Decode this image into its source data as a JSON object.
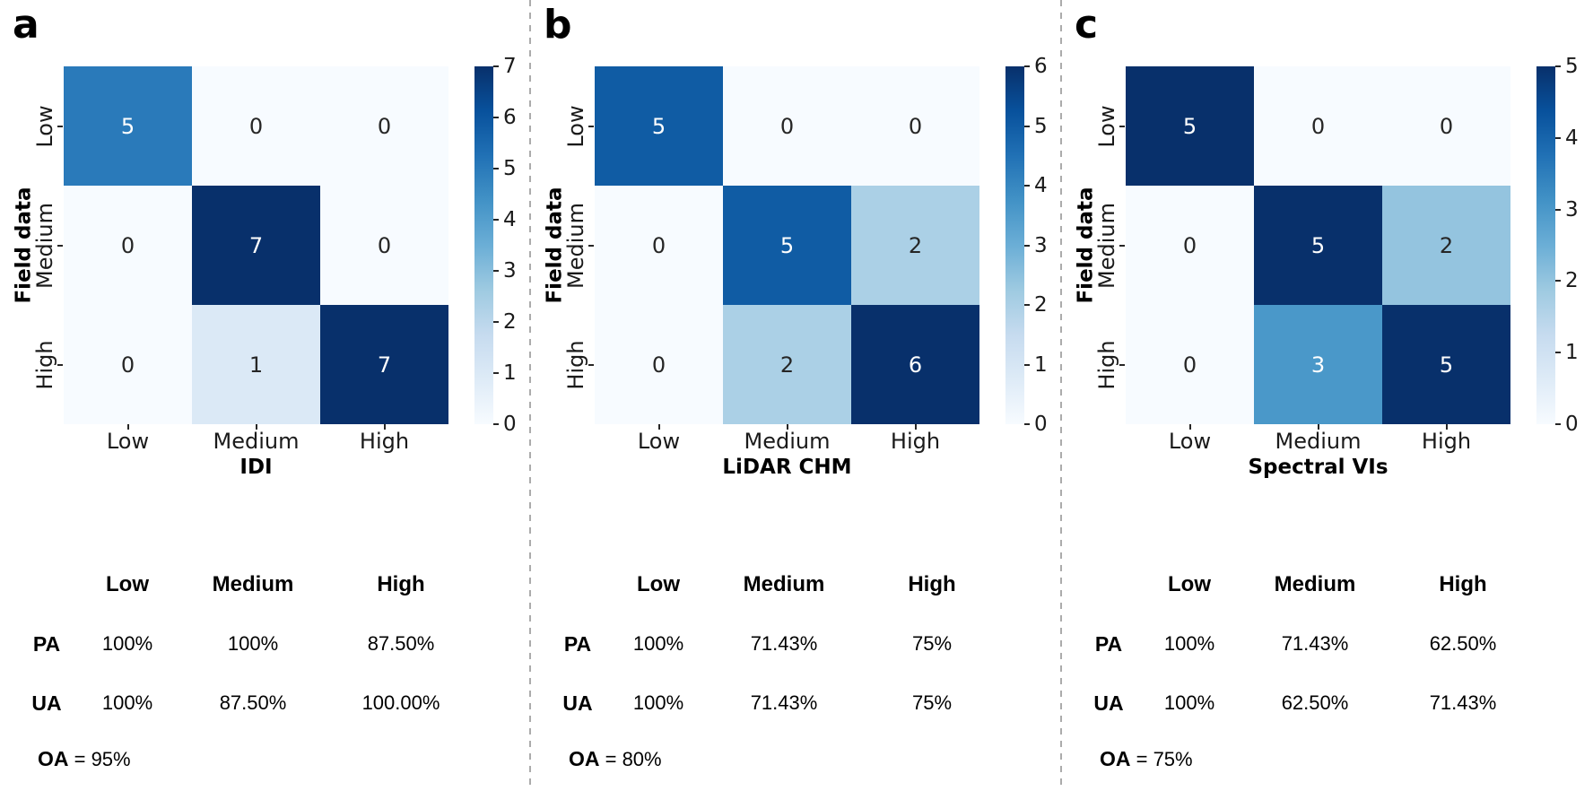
{
  "style": {
    "background": "#ffffff",
    "divider_color": "#ababab",
    "annotation_text_dark": "#262626",
    "annotation_text_light": "#ffffff",
    "axis_text_color": "#1a1a1a",
    "colormap_name": "Blues",
    "colormap_stops": [
      [
        0.0,
        "#f7fbff"
      ],
      [
        0.125,
        "#deebf7"
      ],
      [
        0.25,
        "#c6dbef"
      ],
      [
        0.375,
        "#9ecae1"
      ],
      [
        0.5,
        "#6baed6"
      ],
      [
        0.625,
        "#4292c6"
      ],
      [
        0.75,
        "#2171b5"
      ],
      [
        0.875,
        "#08519c"
      ],
      [
        1.0,
        "#08306b"
      ]
    ]
  },
  "chart_data": [
    {
      "type": "heatmap",
      "panel_label": "a",
      "xlabel": "IDI",
      "ylabel": "Field data",
      "x_categories": [
        "Low",
        "Medium",
        "High"
      ],
      "y_categories": [
        "Low",
        "Medium",
        "High"
      ],
      "matrix": [
        [
          5,
          0,
          0
        ],
        [
          0,
          7,
          0
        ],
        [
          0,
          1,
          7
        ]
      ],
      "vmin": 0,
      "vmax": 7,
      "colorbar_ticks": [
        7,
        6,
        5,
        4,
        3,
        2,
        1,
        0
      ],
      "legend_position": "colorbar-right",
      "grid": false,
      "accuracy_table": {
        "columns": [
          "Low",
          "Medium",
          "High"
        ],
        "rows": [
          {
            "label": "PA",
            "values": [
              "100%",
              "100%",
              "87.50%"
            ]
          },
          {
            "label": "UA",
            "values": [
              "100%",
              "87.50%",
              "100.00%"
            ]
          }
        ],
        "overall_label": "OA",
        "overall_value": "= 95%"
      }
    },
    {
      "type": "heatmap",
      "panel_label": "b",
      "xlabel": "LiDAR CHM",
      "ylabel": "Field data",
      "x_categories": [
        "Low",
        "Medium",
        "High"
      ],
      "y_categories": [
        "Low",
        "Medium",
        "High"
      ],
      "matrix": [
        [
          5,
          0,
          0
        ],
        [
          0,
          5,
          2
        ],
        [
          0,
          2,
          6
        ]
      ],
      "vmin": 0,
      "vmax": 6,
      "colorbar_ticks": [
        6,
        5,
        4,
        3,
        2,
        1,
        0
      ],
      "legend_position": "colorbar-right",
      "grid": false,
      "accuracy_table": {
        "columns": [
          "Low",
          "Medium",
          "High"
        ],
        "rows": [
          {
            "label": "PA",
            "values": [
              "100%",
              "71.43%",
              "75%"
            ]
          },
          {
            "label": "UA",
            "values": [
              "100%",
              "71.43%",
              "75%"
            ]
          }
        ],
        "overall_label": "OA",
        "overall_value": "= 80%"
      }
    },
    {
      "type": "heatmap",
      "panel_label": "c",
      "xlabel": "Spectral VIs",
      "ylabel": "Field data",
      "x_categories": [
        "Low",
        "Medium",
        "High"
      ],
      "y_categories": [
        "Low",
        "Medium",
        "High"
      ],
      "matrix": [
        [
          5,
          0,
          0
        ],
        [
          0,
          5,
          2
        ],
        [
          0,
          3,
          5
        ]
      ],
      "vmin": 0,
      "vmax": 5,
      "colorbar_ticks": [
        5,
        4,
        3,
        2,
        1,
        0
      ],
      "legend_position": "colorbar-right",
      "grid": false,
      "accuracy_table": {
        "columns": [
          "Low",
          "Medium",
          "High"
        ],
        "rows": [
          {
            "label": "PA",
            "values": [
              "100%",
              "71.43%",
              "62.50%"
            ]
          },
          {
            "label": "UA",
            "values": [
              "100%",
              "62.50%",
              "71.43%"
            ]
          }
        ],
        "overall_label": "OA",
        "overall_value": "= 75%"
      }
    }
  ]
}
